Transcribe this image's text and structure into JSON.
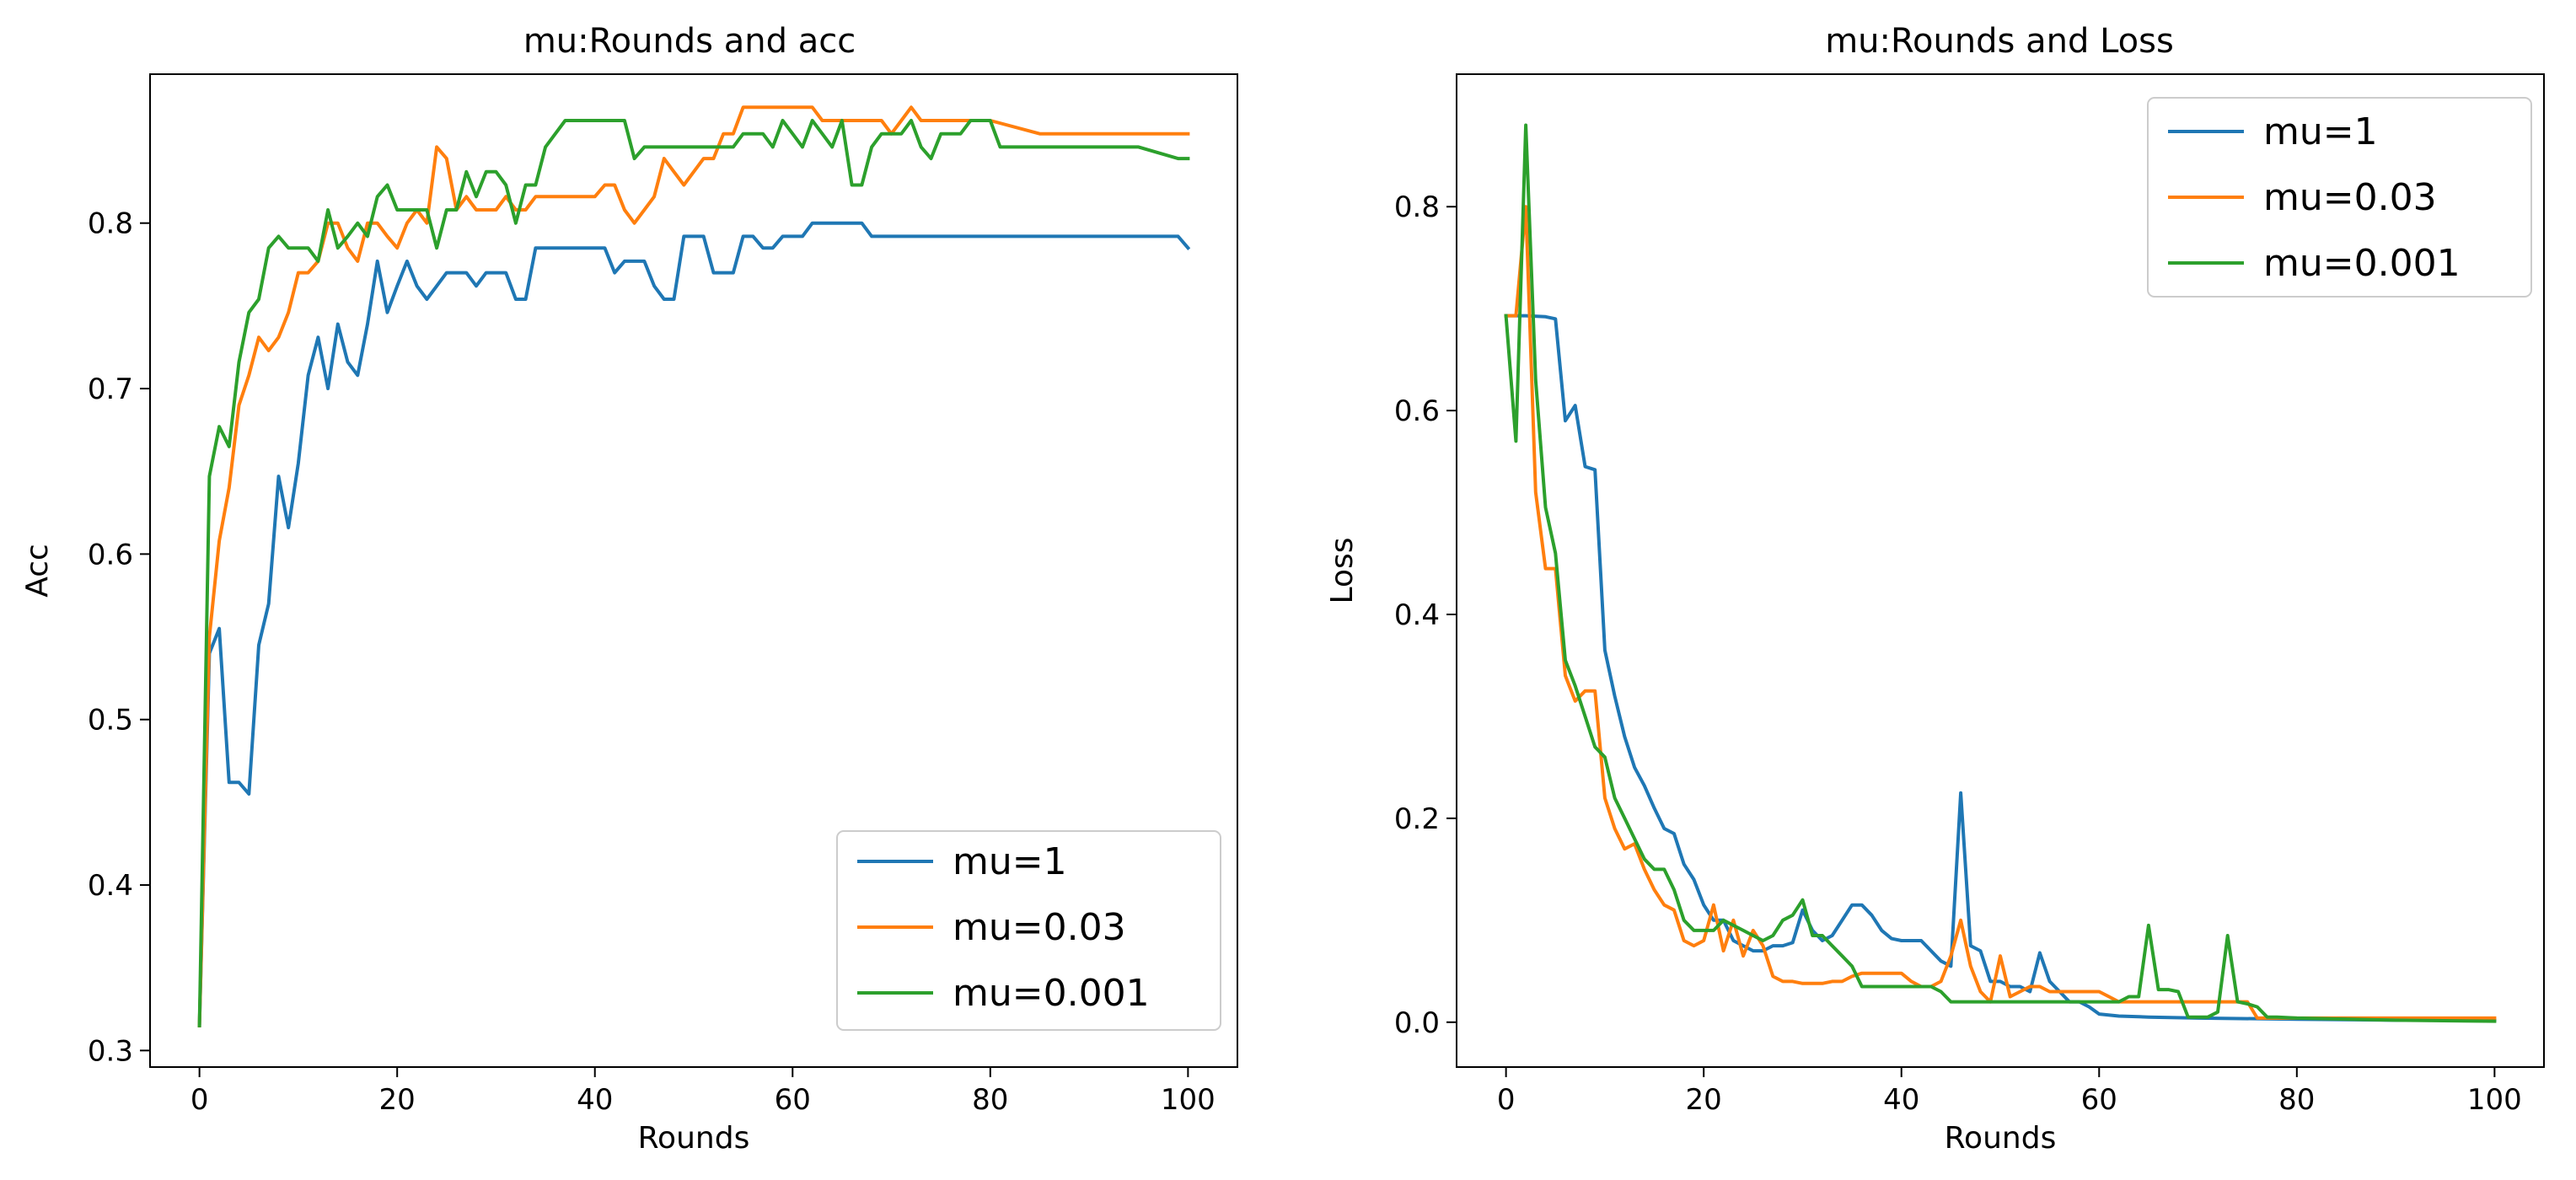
{
  "chart_data": [
    {
      "type": "line",
      "title": "mu:Rounds and acc",
      "xlabel": "Rounds",
      "ylabel": "Acc",
      "xlim": [
        -5,
        105
      ],
      "ylim": [
        0.29,
        0.89
      ],
      "xticks": [
        0,
        20,
        40,
        60,
        80,
        100
      ],
      "yticks": [
        0.3,
        0.4,
        0.5,
        0.6,
        0.7,
        0.8
      ],
      "legend_position": "lower-right",
      "series": [
        {
          "name": "mu=1",
          "color": "#1f77b4",
          "x": [
            0,
            1,
            2,
            3,
            4,
            5,
            6,
            7,
            8,
            9,
            10,
            11,
            12,
            13,
            14,
            15,
            16,
            17,
            18,
            19,
            20,
            21,
            22,
            23,
            24,
            25,
            26,
            27,
            28,
            29,
            30,
            31,
            32,
            33,
            34,
            35,
            36,
            37,
            38,
            39,
            40,
            41,
            42,
            43,
            44,
            45,
            46,
            47,
            48,
            49,
            50,
            51,
            52,
            53,
            54,
            55,
            56,
            57,
            58,
            59,
            60,
            61,
            62,
            63,
            64,
            65,
            66,
            67,
            68,
            69,
            70,
            80,
            90,
            99,
            100
          ],
          "values": [
            0.315,
            0.54,
            0.555,
            0.462,
            0.462,
            0.455,
            0.545,
            0.57,
            0.647,
            0.616,
            0.655,
            0.708,
            0.731,
            0.7,
            0.739,
            0.716,
            0.708,
            0.739,
            0.777,
            0.746,
            0.762,
            0.777,
            0.762,
            0.754,
            0.762,
            0.77,
            0.77,
            0.77,
            0.762,
            0.77,
            0.77,
            0.77,
            0.754,
            0.754,
            0.785,
            0.785,
            0.785,
            0.785,
            0.785,
            0.785,
            0.785,
            0.785,
            0.77,
            0.777,
            0.777,
            0.777,
            0.762,
            0.754,
            0.754,
            0.792,
            0.792,
            0.792,
            0.77,
            0.77,
            0.77,
            0.792,
            0.792,
            0.785,
            0.785,
            0.792,
            0.792,
            0.792,
            0.8,
            0.8,
            0.8,
            0.8,
            0.8,
            0.8,
            0.792,
            0.792,
            0.792,
            0.792,
            0.792,
            0.792,
            0.785
          ]
        },
        {
          "name": "mu=0.03",
          "color": "#ff7f0e",
          "x": [
            0,
            1,
            2,
            3,
            4,
            5,
            6,
            7,
            8,
            9,
            10,
            11,
            12,
            13,
            14,
            15,
            16,
            17,
            18,
            19,
            20,
            21,
            22,
            23,
            24,
            25,
            26,
            27,
            28,
            29,
            30,
            31,
            32,
            33,
            34,
            35,
            36,
            37,
            38,
            39,
            40,
            41,
            42,
            43,
            44,
            45,
            46,
            47,
            48,
            49,
            50,
            51,
            52,
            53,
            54,
            55,
            56,
            57,
            58,
            59,
            60,
            61,
            62,
            63,
            64,
            65,
            66,
            67,
            68,
            69,
            70,
            71,
            72,
            73,
            74,
            75,
            76,
            77,
            78,
            79,
            80,
            85,
            90,
            95,
            100
          ],
          "values": [
            0.315,
            0.55,
            0.608,
            0.64,
            0.69,
            0.708,
            0.731,
            0.723,
            0.731,
            0.746,
            0.77,
            0.77,
            0.777,
            0.8,
            0.8,
            0.785,
            0.777,
            0.8,
            0.8,
            0.792,
            0.785,
            0.8,
            0.808,
            0.8,
            0.846,
            0.839,
            0.808,
            0.816,
            0.808,
            0.808,
            0.808,
            0.816,
            0.808,
            0.808,
            0.816,
            0.816,
            0.816,
            0.816,
            0.816,
            0.816,
            0.816,
            0.823,
            0.823,
            0.808,
            0.8,
            0.808,
            0.816,
            0.839,
            0.831,
            0.823,
            0.831,
            0.839,
            0.839,
            0.854,
            0.854,
            0.87,
            0.87,
            0.87,
            0.87,
            0.87,
            0.87,
            0.87,
            0.87,
            0.862,
            0.862,
            0.862,
            0.862,
            0.862,
            0.862,
            0.862,
            0.854,
            0.862,
            0.87,
            0.862,
            0.862,
            0.862,
            0.862,
            0.862,
            0.862,
            0.862,
            0.862,
            0.854,
            0.854,
            0.854,
            0.854
          ]
        },
        {
          "name": "mu=0.001",
          "color": "#2ca02c",
          "x": [
            0,
            1,
            2,
            3,
            4,
            5,
            6,
            7,
            8,
            9,
            10,
            11,
            12,
            13,
            14,
            15,
            16,
            17,
            18,
            19,
            20,
            21,
            22,
            23,
            24,
            25,
            26,
            27,
            28,
            29,
            30,
            31,
            32,
            33,
            34,
            35,
            36,
            37,
            38,
            39,
            40,
            41,
            42,
            43,
            44,
            45,
            46,
            47,
            48,
            49,
            50,
            51,
            52,
            53,
            54,
            55,
            56,
            57,
            58,
            59,
            60,
            61,
            62,
            63,
            64,
            65,
            66,
            67,
            68,
            69,
            70,
            71,
            72,
            73,
            74,
            75,
            76,
            77,
            78,
            79,
            80,
            81,
            85,
            90,
            95,
            99,
            100
          ],
          "values": [
            0.315,
            0.647,
            0.677,
            0.665,
            0.716,
            0.746,
            0.754,
            0.785,
            0.792,
            0.785,
            0.785,
            0.785,
            0.777,
            0.808,
            0.785,
            0.792,
            0.8,
            0.792,
            0.816,
            0.823,
            0.808,
            0.808,
            0.808,
            0.808,
            0.785,
            0.808,
            0.808,
            0.831,
            0.816,
            0.831,
            0.831,
            0.823,
            0.8,
            0.823,
            0.823,
            0.846,
            0.854,
            0.862,
            0.862,
            0.862,
            0.862,
            0.862,
            0.862,
            0.862,
            0.839,
            0.846,
            0.846,
            0.846,
            0.846,
            0.846,
            0.846,
            0.846,
            0.846,
            0.846,
            0.846,
            0.854,
            0.854,
            0.854,
            0.846,
            0.862,
            0.854,
            0.846,
            0.862,
            0.854,
            0.846,
            0.862,
            0.823,
            0.823,
            0.846,
            0.854,
            0.854,
            0.854,
            0.862,
            0.846,
            0.839,
            0.854,
            0.854,
            0.854,
            0.862,
            0.862,
            0.862,
            0.846,
            0.846,
            0.846,
            0.846,
            0.839,
            0.839
          ]
        }
      ]
    },
    {
      "type": "line",
      "title": "mu:Rounds and Loss",
      "xlabel": "Rounds",
      "ylabel": "Loss",
      "xlim": [
        -5,
        105
      ],
      "ylim": [
        -0.044,
        0.93
      ],
      "xticks": [
        0,
        20,
        40,
        60,
        80,
        100
      ],
      "yticks": [
        0.0,
        0.2,
        0.4,
        0.6,
        0.8
      ],
      "legend_position": "top-right",
      "series": [
        {
          "name": "mu=1",
          "color": "#1f77b4",
          "x": [
            0,
            2,
            4,
            5,
            6,
            7,
            8,
            9,
            10,
            11,
            12,
            13,
            14,
            15,
            16,
            17,
            18,
            19,
            20,
            21,
            22,
            23,
            24,
            25,
            26,
            27,
            28,
            29,
            30,
            31,
            32,
            33,
            34,
            35,
            36,
            37,
            38,
            39,
            40,
            41,
            42,
            43,
            44,
            45,
            46,
            47,
            48,
            49,
            50,
            51,
            52,
            53,
            54,
            55,
            56,
            57,
            58,
            59,
            60,
            62,
            65,
            70,
            80,
            90,
            100
          ],
          "values": [
            0.693,
            0.693,
            0.692,
            0.69,
            0.59,
            0.605,
            0.545,
            0.542,
            0.365,
            0.32,
            0.28,
            0.25,
            0.232,
            0.21,
            0.19,
            0.185,
            0.155,
            0.14,
            0.115,
            0.1,
            0.1,
            0.08,
            0.075,
            0.07,
            0.07,
            0.075,
            0.075,
            0.078,
            0.11,
            0.09,
            0.08,
            0.085,
            0.1,
            0.115,
            0.115,
            0.105,
            0.09,
            0.082,
            0.08,
            0.08,
            0.08,
            0.07,
            0.06,
            0.055,
            0.225,
            0.075,
            0.07,
            0.04,
            0.04,
            0.035,
            0.035,
            0.03,
            0.068,
            0.04,
            0.03,
            0.02,
            0.02,
            0.015,
            0.008,
            0.006,
            0.005,
            0.004,
            0.003,
            0.002,
            0.002
          ]
        },
        {
          "name": "mu=0.03",
          "color": "#ff7f0e",
          "x": [
            0,
            1,
            2,
            3,
            4,
            5,
            6,
            7,
            8,
            9,
            10,
            11,
            12,
            13,
            14,
            15,
            16,
            17,
            18,
            19,
            20,
            21,
            22,
            23,
            24,
            25,
            26,
            27,
            28,
            29,
            30,
            31,
            32,
            33,
            34,
            35,
            36,
            37,
            38,
            39,
            40,
            41,
            42,
            43,
            44,
            45,
            46,
            47,
            48,
            49,
            50,
            51,
            52,
            53,
            54,
            55,
            56,
            57,
            58,
            59,
            60,
            61,
            62,
            65,
            70,
            75,
            76,
            80,
            90,
            100
          ],
          "values": [
            0.693,
            0.693,
            0.8,
            0.52,
            0.445,
            0.445,
            0.34,
            0.315,
            0.325,
            0.325,
            0.22,
            0.19,
            0.17,
            0.175,
            0.15,
            0.13,
            0.115,
            0.11,
            0.08,
            0.075,
            0.08,
            0.115,
            0.07,
            0.1,
            0.065,
            0.09,
            0.075,
            0.045,
            0.04,
            0.04,
            0.038,
            0.038,
            0.038,
            0.04,
            0.04,
            0.045,
            0.048,
            0.048,
            0.048,
            0.048,
            0.048,
            0.04,
            0.035,
            0.035,
            0.04,
            0.065,
            0.1,
            0.055,
            0.03,
            0.02,
            0.065,
            0.025,
            0.03,
            0.035,
            0.035,
            0.03,
            0.03,
            0.03,
            0.03,
            0.03,
            0.03,
            0.025,
            0.02,
            0.02,
            0.02,
            0.02,
            0.004,
            0.004,
            0.004,
            0.004
          ]
        },
        {
          "name": "mu=0.001",
          "color": "#2ca02c",
          "x": [
            0,
            1,
            2,
            3,
            4,
            5,
            6,
            7,
            8,
            9,
            10,
            11,
            12,
            13,
            14,
            15,
            16,
            17,
            18,
            19,
            20,
            21,
            22,
            23,
            24,
            25,
            26,
            27,
            28,
            29,
            30,
            31,
            32,
            33,
            34,
            35,
            36,
            37,
            38,
            39,
            40,
            41,
            42,
            43,
            44,
            45,
            46,
            47,
            48,
            50,
            55,
            60,
            62,
            63,
            64,
            65,
            66,
            67,
            68,
            69,
            70,
            71,
            72,
            73,
            74,
            75,
            76,
            77,
            78,
            80,
            90,
            100
          ],
          "values": [
            0.693,
            0.57,
            0.88,
            0.63,
            0.505,
            0.46,
            0.355,
            0.33,
            0.3,
            0.27,
            0.26,
            0.22,
            0.2,
            0.18,
            0.16,
            0.15,
            0.15,
            0.13,
            0.1,
            0.09,
            0.09,
            0.09,
            0.1,
            0.095,
            0.09,
            0.085,
            0.08,
            0.085,
            0.1,
            0.105,
            0.12,
            0.085,
            0.085,
            0.075,
            0.065,
            0.055,
            0.035,
            0.035,
            0.035,
            0.035,
            0.035,
            0.035,
            0.035,
            0.035,
            0.03,
            0.02,
            0.02,
            0.02,
            0.02,
            0.02,
            0.02,
            0.02,
            0.02,
            0.025,
            0.025,
            0.095,
            0.032,
            0.032,
            0.03,
            0.005,
            0.005,
            0.005,
            0.01,
            0.085,
            0.02,
            0.018,
            0.015,
            0.005,
            0.005,
            0.004,
            0.002,
            0.001
          ]
        }
      ]
    }
  ]
}
